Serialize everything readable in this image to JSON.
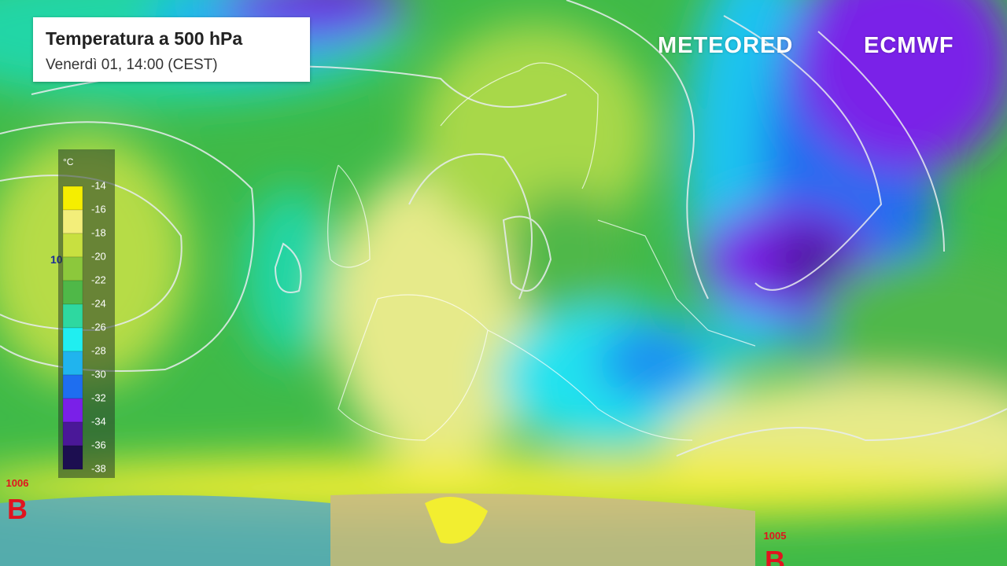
{
  "header": {
    "title": "Temperatura a 500 hPa",
    "subtitle": "Venerdì 01, 14:00 (CEST)"
  },
  "logos": [
    "METEORED",
    "ECMWF"
  ],
  "legend": {
    "unit": "°C",
    "stops": [
      -14,
      -16,
      -18,
      -20,
      -22,
      -24,
      -26,
      -28,
      -30,
      -32,
      -34,
      -36,
      -38
    ],
    "colors": [
      "#f5ee00",
      "#f3ee7a",
      "#c8e040",
      "#8cc83c",
      "#4fb848",
      "#2ed8a0",
      "#20eef0",
      "#20b4ee",
      "#1e6ef0",
      "#7a20e8",
      "#4a1898",
      "#1c0e50"
    ]
  },
  "pressure_labels": [
    {
      "value": "10"
    },
    {
      "value": "1006",
      "center": "B"
    },
    {
      "value": "1005",
      "center": "B"
    }
  ]
}
